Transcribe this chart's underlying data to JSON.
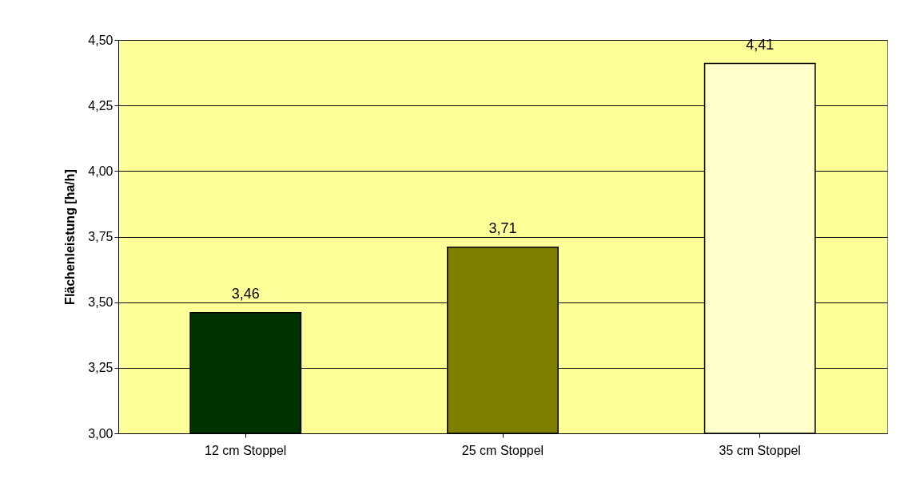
{
  "chart_data": {
    "type": "bar",
    "ylabel": "Flächenleistung [ha/h]",
    "categories": [
      "12 cm Stoppel",
      "25 cm Stoppel",
      "35 cm Stoppel"
    ],
    "values": [
      3.46,
      3.71,
      4.41
    ],
    "colors": [
      "#003300",
      "#808000",
      "#ffffcc"
    ],
    "value_labels": [
      "3,46",
      "3,71",
      "4,41"
    ],
    "ylim": [
      3.0,
      4.5
    ],
    "yticks": [
      {
        "value": 3.0,
        "label": "3,00"
      },
      {
        "value": 3.25,
        "label": "3,25"
      },
      {
        "value": 3.5,
        "label": "3,50"
      },
      {
        "value": 3.75,
        "label": "3,75"
      },
      {
        "value": 4.0,
        "label": "4,00"
      },
      {
        "value": 4.25,
        "label": "4,25"
      },
      {
        "value": 4.5,
        "label": "4,50"
      }
    ],
    "grid": "y"
  }
}
